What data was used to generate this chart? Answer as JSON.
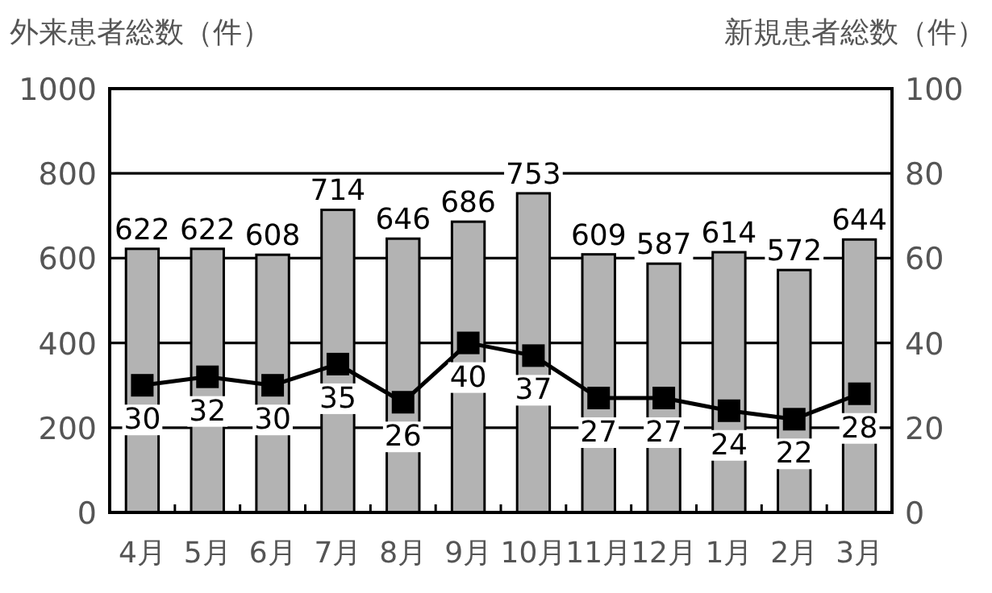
{
  "chart_data": {
    "type": "bar",
    "categories": [
      "4月",
      "5月",
      "6月",
      "7月",
      "8月",
      "9月",
      "10月",
      "11月",
      "12月",
      "1月",
      "2月",
      "3月"
    ],
    "ylabel": "外来患者総数（件）",
    "y2label": "新規患者総数（件）",
    "ylim": [
      0,
      1000
    ],
    "yticks": [
      0,
      200,
      400,
      600,
      800,
      1000
    ],
    "y2lim": [
      0,
      100
    ],
    "y2ticks": [
      0,
      20,
      40,
      60,
      80,
      100
    ],
    "grid": "y",
    "data_labels": true,
    "series": [
      {
        "color": "#b3b3b3",
        "values": [
          622,
          622,
          608,
          714,
          646,
          686,
          753,
          609,
          587,
          614,
          572,
          644
        ]
      },
      {
        "type": "line",
        "axis": "y2",
        "color": "#000000",
        "marker": "square",
        "line_style": "solid",
        "values": [
          30,
          32,
          30,
          35,
          26,
          40,
          37,
          27,
          27,
          24,
          22,
          28
        ]
      }
    ]
  }
}
